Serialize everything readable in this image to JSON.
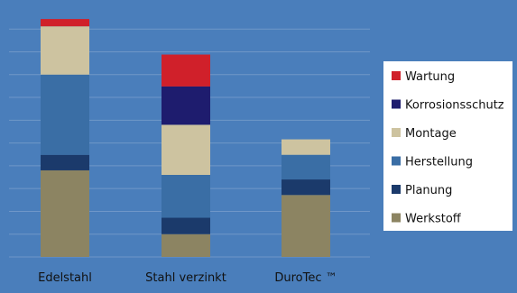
{
  "chart_data": {
    "type": "bar",
    "stacked": true,
    "categories": [
      "Edelstahl",
      "Stahl verzinkt",
      "DuroTec ™"
    ],
    "series": [
      {
        "name": "Werkstoff",
        "color": "#8c8462",
        "values": [
          95,
          25,
          68
        ]
      },
      {
        "name": "Planung",
        "color": "#1b3a6b",
        "values": [
          17,
          18,
          17
        ]
      },
      {
        "name": "Herstellung",
        "color": "#3a6ea5",
        "values": [
          88,
          47,
          27
        ]
      },
      {
        "name": "Montage",
        "color": "#cdc3a0",
        "values": [
          53,
          55,
          17
        ]
      },
      {
        "name": "Korrosionsschutz",
        "color": "#1e1c6e",
        "values": [
          0,
          42,
          0
        ]
      },
      {
        "name": "Wartung",
        "color": "#d0202a",
        "values": [
          8,
          35,
          0
        ]
      }
    ],
    "legend_order": [
      "Wartung",
      "Korrosionsschutz",
      "Montage",
      "Herstellung",
      "Planung",
      "Werkstoff"
    ],
    "ylim": [
      0,
      270
    ],
    "grid": true,
    "legend_position": "right",
    "plot_background": "#4a7ebb",
    "title": "",
    "xlabel": "",
    "ylabel": ""
  }
}
